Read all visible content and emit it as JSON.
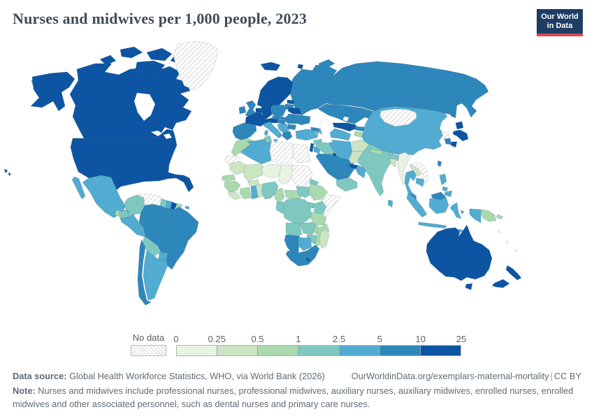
{
  "header": {
    "title": "Nurses and midwives per 1,000 people, 2023",
    "logo": {
      "line1": "Our World",
      "line2": "in Data"
    }
  },
  "legend": {
    "no_data_label": "No data"
  },
  "footer": {
    "data_source_label": "Data source:",
    "data_source_text": " Global Health Workforce Statistics, WHO, via World Bank (2026)",
    "link_text": "OurWorldinData.org/exemplars-maternal-mortality",
    "license_separator": "|",
    "license": "CC BY",
    "note_label": "Note:",
    "note_text": " Nurses and midwives include professional nurses, professional midwives, auxiliary nurses, auxiliary midwives, enrolled nurses, enrolled midwives and other associated personnel, such as dental nurses and primary care nurses."
  },
  "colors": {
    "background": "#ffffff",
    "logo_navy": "#1d3d63",
    "logo_red": "#e0464f",
    "title_text": "#3f4c58",
    "footer_text": "#5f6b76",
    "legend_text": "#5a5f63"
  },
  "chart_data": {
    "type": "choropleth_map",
    "title": "Nurses and midwives per 1,000 people, 2023",
    "year": 2023,
    "unit": "nurses and midwives per 1,000 people",
    "legend": {
      "tick_labels": [
        "0",
        "0.25",
        "0.5",
        "1",
        "2.5",
        "5",
        "10",
        "25"
      ],
      "bins": [
        {
          "label": "0-0.25",
          "color": "#e8f3e2"
        },
        {
          "label": "0.25-0.5",
          "color": "#cbe5c2"
        },
        {
          "label": "0.5-1",
          "color": "#a9d9ad"
        },
        {
          "label": "1-2.5",
          "color": "#7ec8c0"
        },
        {
          "label": "2.5-5",
          "color": "#52abd0"
        },
        {
          "label": "5-10",
          "color": "#2e87ba"
        },
        {
          "label": "10-25",
          "color": "#0d55a2"
        }
      ],
      "no_data": {
        "label": "No data",
        "pattern": "diagonal-hatch"
      }
    },
    "regions": {
      "usa": "10-25",
      "canada": "10-25",
      "greenland": "no-data",
      "mexico": "2.5-5",
      "guatemala": "0.5-1",
      "honduras": "1-2.5",
      "nicaragua": "1-2.5",
      "costa-rica-panama": "5-10",
      "cuba": "10-25",
      "haiti-dominican-republic": "0.5-1",
      "jamaica": "10-25",
      "puerto-rico": "2.5-5",
      "colombia": "1-2.5",
      "venezuela": "no-data",
      "guyana": "1-2.5",
      "suriname": "2.5-5",
      "french-guiana": "10-25",
      "ecuador": "1-2.5",
      "peru": "2.5-5",
      "brazil": "5-10",
      "bolivia": "1-2.5",
      "paraguay": "2.5-5",
      "uruguay": "5-10",
      "argentina": "2.5-5",
      "chile": "5-10",
      "iceland": "10-25",
      "scandinavia": "10-25",
      "denmark": "10-25",
      "united-kingdom": "5-10",
      "ireland": "5-10",
      "france": "10-25",
      "benelux": "10-25",
      "germany": "10-25",
      "switzerland-austria": "10-25",
      "italy": "2.5-5",
      "iberia": "5-10",
      "poland": "5-10",
      "czechia-slovakia": "5-10",
      "hungary": "5-10",
      "balkans": "2.5-5",
      "greece": "5-10",
      "romania": "5-10",
      "bulgaria": "5-10",
      "estonia": "10-25",
      "latvia-lithuania": "5-10",
      "belarus": "10-25",
      "ukraine": "5-10",
      "russia": "5-10",
      "kazakhstan": "5-10",
      "uzbekistan": "10-25",
      "kyrgyzstan": "5-10",
      "tajikistan": "0.5-1",
      "turkmenistan": "2.5-5",
      "turkey": "2.5-5",
      "georgia": "5-10",
      "azerbaijan": "2.5-5",
      "armenia": "1-2.5",
      "syria": "1-2.5",
      "lebanon-israel": "10-25",
      "jordan": "2.5-5",
      "iraq": "1-2.5",
      "saudi-arabia": "5-10",
      "kuwait": "10-25",
      "qatar-uae": "10-25",
      "oman": "2.5-5",
      "yemen": "1-2.5",
      "iran": "2.5-5",
      "afghanistan": "0.25-0.5",
      "pakistan": "0.25-0.5",
      "india": "1-2.5",
      "nepal": "0.5-1",
      "bhutan": "1-2.5",
      "bangladesh": "0.25-0.5",
      "sri-lanka": "2.5-5",
      "myanmar": "0-0.25",
      "thailand": "2.5-5",
      "laos": "0.25-0.5",
      "vietnam": "no-data",
      "cambodia": "2.5-5",
      "malaysia": "5-10",
      "indonesia": "2.5-5",
      "philippines": "2.5-5",
      "papua-new-guinea": "0.5-1",
      "china": "2.5-5",
      "mongolia": "no-data",
      "north-korea": "no-data",
      "south-korea": "5-10",
      "japan": "10-25",
      "taiwan": "5-10",
      "australia": "10-25",
      "new-zealand": "10-25",
      "morocco": "0.5-1",
      "western-sahara": "no-data",
      "algeria": "2.5-5",
      "tunisia": "1-2.5",
      "libya": "no-data",
      "egypt": "no-data",
      "mauritania": "0.25-0.5",
      "mali": "0.25-0.5",
      "niger": "0-0.25",
      "chad": "0-0.25",
      "sudan": "no-data",
      "eritrea": "1-2.5",
      "senegal": "0.5-1",
      "guinea": "0.5-1",
      "sierra-leone-liberia": "0.25-0.5",
      "ivory-coast": "0.5-1",
      "burkina-faso": "0.25-0.5",
      "ghana": "2.5-5",
      "togo-benin": "0.25-0.5",
      "nigeria": "1-2.5",
      "cameroon": "0.5-1",
      "central-african-republic": "0.5-1",
      "south-sudan": "1-2.5",
      "ethiopia": "0.5-1",
      "somalia": "no-data",
      "kenya": "1-2.5",
      "uganda": "1-2.5",
      "dr-congo": "1-2.5",
      "gabon-congo": "1-2.5",
      "tanzania": "0.5-1",
      "angola": "1-2.5",
      "zambia": "1-2.5",
      "malawi": "0.5-1",
      "mozambique": "0.5-1",
      "zimbabwe": "1-2.5",
      "namibia": "5-10",
      "botswana": "2.5-5",
      "south-africa": "5-10",
      "lesotho": "10-25",
      "madagascar": "0.25-0.5"
    }
  }
}
